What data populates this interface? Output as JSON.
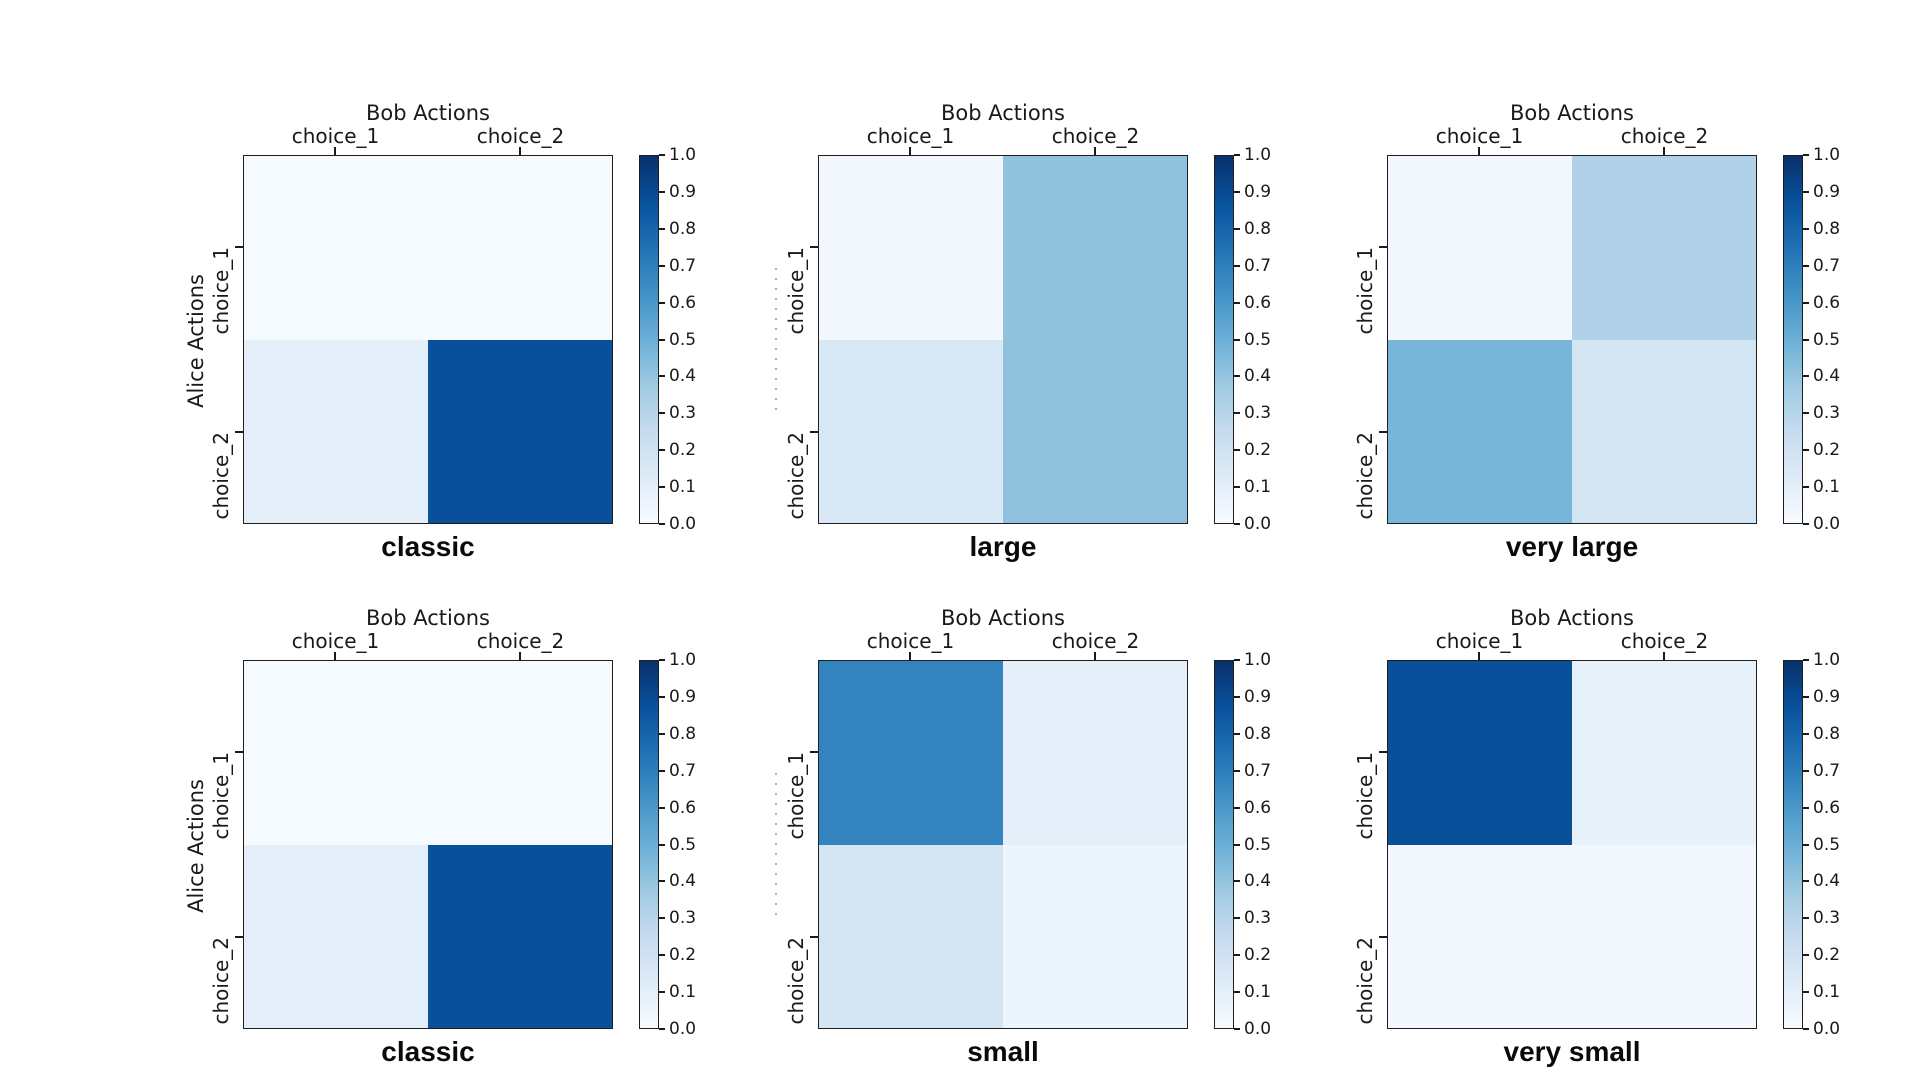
{
  "figure": {
    "background_color": "#ffffff",
    "text_color": "#1a1a1a",
    "x_axis_label": "Bob Actions",
    "y_axis_label": "Alice Actions",
    "column_labels": [
      "choice_1",
      "choice_2"
    ],
    "row_labels": [
      "choice_1",
      "choice_2"
    ],
    "colormap": "Blues",
    "colorbar_tick_labels_top_to_bottom": [
      "1.0",
      "0.9",
      "0.8",
      "0.7",
      "0.6",
      "0.5",
      "0.4",
      "0.3",
      "0.2",
      "0.1",
      "0.0"
    ],
    "grid_rows": 2,
    "grid_cols": 3
  },
  "chart_data": [
    {
      "type": "heatmap",
      "title": "classic",
      "x_axis_label": "Bob Actions",
      "y_axis_label": "Alice Actions",
      "columns": [
        "choice_1",
        "choice_2"
      ],
      "rows": [
        "choice_1",
        "choice_2"
      ],
      "values": [
        [
          0.01,
          0.01
        ],
        [
          0.1,
          0.88
        ]
      ],
      "vmin": 0.0,
      "vmax": 1.0,
      "colormap": "Blues",
      "show_y_axis_label": true,
      "faint_dotted_artifact": false
    },
    {
      "type": "heatmap",
      "title": "large",
      "x_axis_label": "Bob Actions",
      "y_axis_label": "Alice Actions",
      "columns": [
        "choice_1",
        "choice_2"
      ],
      "rows": [
        "choice_1",
        "choice_2"
      ],
      "values": [
        [
          0.03,
          0.41
        ],
        [
          0.15,
          0.41
        ]
      ],
      "vmin": 0.0,
      "vmax": 1.0,
      "colormap": "Blues",
      "show_y_axis_label": false,
      "faint_dotted_artifact": true
    },
    {
      "type": "heatmap",
      "title": "very large",
      "x_axis_label": "Bob Actions",
      "y_axis_label": "Alice Actions",
      "columns": [
        "choice_1",
        "choice_2"
      ],
      "rows": [
        "choice_1",
        "choice_2"
      ],
      "values": [
        [
          0.03,
          0.32
        ],
        [
          0.47,
          0.18
        ]
      ],
      "vmin": 0.0,
      "vmax": 1.0,
      "colormap": "Blues",
      "show_y_axis_label": false,
      "faint_dotted_artifact": false
    },
    {
      "type": "heatmap",
      "title": "classic",
      "x_axis_label": "Bob Actions",
      "y_axis_label": "Alice Actions",
      "columns": [
        "choice_1",
        "choice_2"
      ],
      "rows": [
        "choice_1",
        "choice_2"
      ],
      "values": [
        [
          0.01,
          0.01
        ],
        [
          0.1,
          0.88
        ]
      ],
      "vmin": 0.0,
      "vmax": 1.0,
      "colormap": "Blues",
      "show_y_axis_label": true,
      "faint_dotted_artifact": false
    },
    {
      "type": "heatmap",
      "title": "small",
      "x_axis_label": "Bob Actions",
      "y_axis_label": "Alice Actions",
      "columns": [
        "choice_1",
        "choice_2"
      ],
      "rows": [
        "choice_1",
        "choice_2"
      ],
      "values": [
        [
          0.68,
          0.09
        ],
        [
          0.18,
          0.05
        ]
      ],
      "vmin": 0.0,
      "vmax": 1.0,
      "colormap": "Blues",
      "show_y_axis_label": false,
      "faint_dotted_artifact": true
    },
    {
      "type": "heatmap",
      "title": "very small",
      "x_axis_label": "Bob Actions",
      "y_axis_label": "Alice Actions",
      "columns": [
        "choice_1",
        "choice_2"
      ],
      "rows": [
        "choice_1",
        "choice_2"
      ],
      "values": [
        [
          0.88,
          0.08
        ],
        [
          0.02,
          0.02
        ]
      ],
      "vmin": 0.0,
      "vmax": 1.0,
      "colormap": "Blues",
      "show_y_axis_label": false,
      "faint_dotted_artifact": false
    }
  ]
}
